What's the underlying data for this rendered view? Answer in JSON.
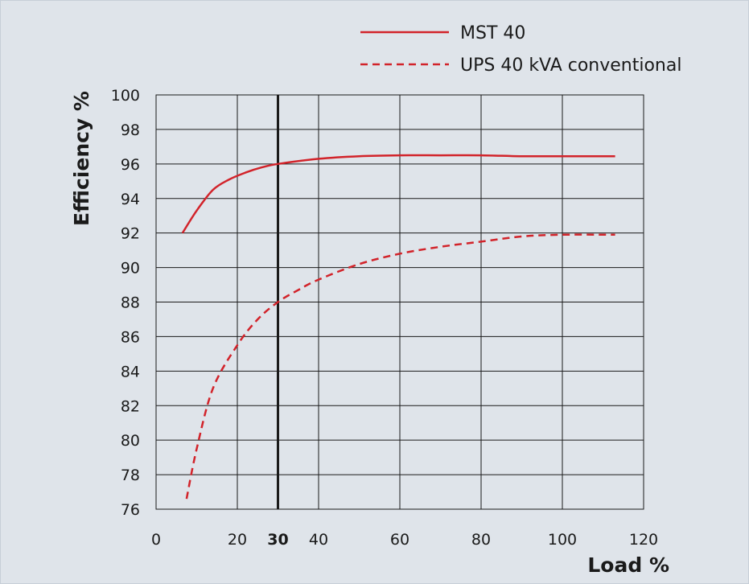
{
  "chart_data": {
    "type": "line",
    "title": "",
    "xlabel": "Load %",
    "ylabel": "Efficiency %",
    "xlim": [
      0,
      120
    ],
    "ylim": [
      76,
      100
    ],
    "x_ticks": [
      "0",
      "20",
      "30",
      "40",
      "60",
      "80",
      "100",
      "120"
    ],
    "y_ticks": [
      "76",
      "78",
      "80",
      "82",
      "84",
      "86",
      "88",
      "90",
      "92",
      "94",
      "96",
      "98",
      "100"
    ],
    "reference_line": {
      "x": 30,
      "label": "30"
    },
    "grid": true,
    "legend_position": "top-right",
    "series": [
      {
        "name": "MST 40",
        "style": "solid",
        "color": "#d2232a",
        "x": [
          6.5,
          10,
          14,
          18,
          22,
          26,
          30,
          40,
          50,
          60,
          70,
          80,
          90,
          100,
          113
        ],
        "y": [
          92.0,
          93.3,
          94.5,
          95.1,
          95.5,
          95.8,
          96.0,
          96.3,
          96.45,
          96.5,
          96.5,
          96.5,
          96.45,
          96.45,
          96.45
        ]
      },
      {
        "name": "UPS 40 kVA conventional",
        "style": "dashed",
        "color": "#d2232a",
        "x": [
          7.5,
          10,
          14,
          20,
          25,
          30,
          35,
          40,
          50,
          60,
          70,
          80,
          90,
          100,
          113
        ],
        "y": [
          76.6,
          79.5,
          83.0,
          85.5,
          87.0,
          88.0,
          88.7,
          89.3,
          90.2,
          90.8,
          91.2,
          91.5,
          91.8,
          91.9,
          91.9
        ]
      }
    ]
  },
  "colors": {
    "background": "#dfe4ea",
    "series": "#d2232a",
    "grid": "#1a1a1a"
  }
}
